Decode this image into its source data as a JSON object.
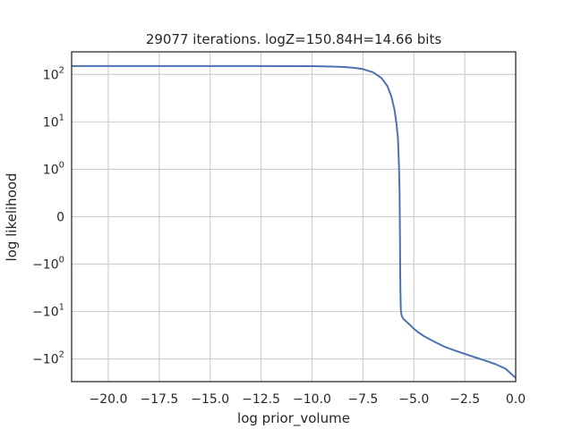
{
  "chart_data": {
    "type": "line",
    "title": "29077 iterations. logZ=150.84H=14.66 bits",
    "xlabel": "log prior_volume",
    "ylabel": "log likelihood",
    "xlim": [
      -21.8,
      0
    ],
    "ylim_symlog": [
      -300,
      300
    ],
    "yscale": "symlog",
    "grid": true,
    "line_color": "#4c72b0",
    "x_ticks": [
      {
        "value": -20.0,
        "label": "−20.0"
      },
      {
        "value": -17.5,
        "label": "−17.5"
      },
      {
        "value": -15.0,
        "label": "−15.0"
      },
      {
        "value": -12.5,
        "label": "−12.5"
      },
      {
        "value": -10.0,
        "label": "−10.0"
      },
      {
        "value": -7.5,
        "label": "−7.5"
      },
      {
        "value": -5.0,
        "label": "−5.0"
      },
      {
        "value": -2.5,
        "label": "−2.5"
      },
      {
        "value": 0.0,
        "label": "0.0"
      }
    ],
    "y_ticks": [
      {
        "value": 100,
        "base": "10",
        "exp": "2",
        "neg": false
      },
      {
        "value": 10,
        "base": "10",
        "exp": "1",
        "neg": false
      },
      {
        "value": 1,
        "base": "10",
        "exp": "0",
        "neg": false
      },
      {
        "value": 0,
        "base": "0",
        "exp": "",
        "neg": false
      },
      {
        "value": -1,
        "base": "10",
        "exp": "0",
        "neg": true
      },
      {
        "value": -10,
        "base": "10",
        "exp": "1",
        "neg": true
      },
      {
        "value": -100,
        "base": "10",
        "exp": "2",
        "neg": true
      }
    ],
    "series": [
      {
        "x": [
          -21.8,
          -20,
          -17.5,
          -15,
          -12.5,
          -10,
          -9,
          -8.5,
          -8,
          -7.5,
          -7,
          -6.6,
          -6.3,
          -6.1,
          -5.95,
          -5.85,
          -5.78,
          -5.73,
          -5.7,
          -5.68,
          -5.67,
          -5.66,
          -5.65,
          -5.64,
          -5.62,
          -5.6,
          -5.55,
          -5.5,
          -5.4,
          -5.2,
          -5.0,
          -4.8,
          -4.5,
          -4.0,
          -3.5,
          -3.0,
          -2.5,
          -2.0,
          -1.5,
          -1.0,
          -0.5,
          -0.2,
          0.0
        ],
        "y": [
          151,
          151,
          151,
          150.8,
          150.5,
          149.5,
          147,
          144,
          139,
          130,
          111,
          85,
          57,
          34,
          18,
          9,
          4.5,
          1.2,
          0.5,
          -0.5,
          -1.5,
          -3.5,
          -6,
          -9,
          -10.8,
          -12,
          -13.5,
          -14.5,
          -15.8,
          -19,
          -23,
          -27,
          -33,
          -43,
          -55,
          -66,
          -78,
          -92,
          -108,
          -128,
          -160,
          -210,
          -250
        ]
      }
    ]
  }
}
